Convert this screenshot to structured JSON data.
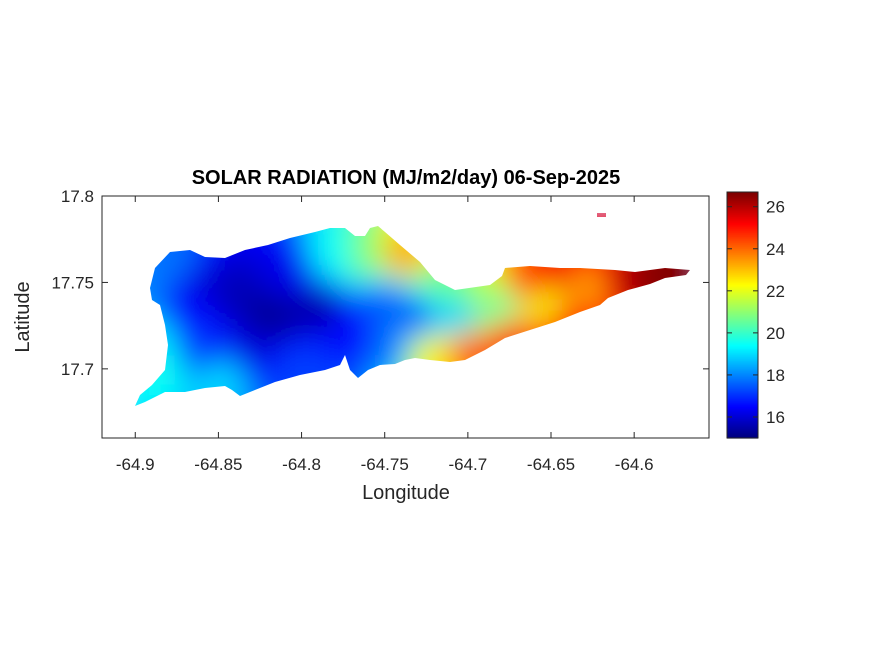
{
  "chart_data": {
    "type": "heatmap",
    "title": "SOLAR RADIATION (MJ/m2/day) 06-Sep-2025",
    "xlabel": "Longitude",
    "ylabel": "Latitude",
    "xlim": [
      -64.92,
      -64.555
    ],
    "ylim": [
      17.66,
      17.8
    ],
    "xticks": [
      -64.9,
      -64.85,
      -64.8,
      -64.75,
      -64.7,
      -64.65,
      -64.6
    ],
    "xtick_labels": [
      "-64.9",
      "-64.85",
      "-64.8",
      "-64.75",
      "-64.7",
      "-64.65",
      "-64.6"
    ],
    "yticks": [
      17.7,
      17.75,
      17.8
    ],
    "ytick_labels": [
      "17.7",
      "17.75",
      "17.8"
    ],
    "grid": false,
    "colorbar": {
      "colormap": "jet",
      "range": [
        15,
        26.7
      ],
      "ticks": [
        16,
        18,
        20,
        22,
        24,
        26
      ],
      "tick_labels": [
        "16",
        "18",
        "20",
        "22",
        "24",
        "26"
      ]
    },
    "samples": [
      {
        "lon": -64.895,
        "lat": 17.745,
        "value": 18.0
      },
      {
        "lon": -64.89,
        "lat": 17.718,
        "value": 19.2
      },
      {
        "lon": -64.885,
        "lat": 17.7,
        "value": 19.6
      },
      {
        "lon": -64.875,
        "lat": 17.762,
        "value": 17.8
      },
      {
        "lon": -64.87,
        "lat": 17.735,
        "value": 16.5
      },
      {
        "lon": -64.86,
        "lat": 17.75,
        "value": 16.0
      },
      {
        "lon": -64.86,
        "lat": 17.71,
        "value": 17.0
      },
      {
        "lon": -64.85,
        "lat": 17.694,
        "value": 19.0
      },
      {
        "lon": -64.84,
        "lat": 17.745,
        "value": 15.6
      },
      {
        "lon": -64.83,
        "lat": 17.715,
        "value": 16.0
      },
      {
        "lon": -64.82,
        "lat": 17.73,
        "value": 15.2
      },
      {
        "lon": -64.81,
        "lat": 17.755,
        "value": 16.2
      },
      {
        "lon": -64.8,
        "lat": 17.7,
        "value": 17.2
      },
      {
        "lon": -64.79,
        "lat": 17.735,
        "value": 15.5
      },
      {
        "lon": -64.78,
        "lat": 17.765,
        "value": 19.5
      },
      {
        "lon": -64.77,
        "lat": 17.72,
        "value": 16.5
      },
      {
        "lon": -64.76,
        "lat": 17.765,
        "value": 21.0
      },
      {
        "lon": -64.75,
        "lat": 17.74,
        "value": 17.5
      },
      {
        "lon": -64.745,
        "lat": 17.712,
        "value": 17.8
      },
      {
        "lon": -64.74,
        "lat": 17.765,
        "value": 23.5
      },
      {
        "lon": -64.73,
        "lat": 17.73,
        "value": 17.5
      },
      {
        "lon": -64.725,
        "lat": 17.708,
        "value": 22.5
      },
      {
        "lon": -64.715,
        "lat": 17.745,
        "value": 20.5
      },
      {
        "lon": -64.705,
        "lat": 17.73,
        "value": 18.5
      },
      {
        "lon": -64.7,
        "lat": 17.712,
        "value": 24.5
      },
      {
        "lon": -64.69,
        "lat": 17.742,
        "value": 21.5
      },
      {
        "lon": -64.68,
        "lat": 17.735,
        "value": 20.0
      },
      {
        "lon": -64.675,
        "lat": 17.72,
        "value": 25.0
      },
      {
        "lon": -64.665,
        "lat": 17.75,
        "value": 24.5
      },
      {
        "lon": -64.65,
        "lat": 17.738,
        "value": 22.0
      },
      {
        "lon": -64.645,
        "lat": 17.755,
        "value": 25.5
      },
      {
        "lon": -64.64,
        "lat": 17.73,
        "value": 25.0
      },
      {
        "lon": -64.625,
        "lat": 17.748,
        "value": 23.0
      },
      {
        "lon": -64.615,
        "lat": 17.75,
        "value": 25.5
      },
      {
        "lon": -64.6,
        "lat": 17.752,
        "value": 26.5
      },
      {
        "lon": -64.58,
        "lat": 17.754,
        "value": 26.7
      },
      {
        "lon": -64.622,
        "lat": 17.788,
        "value": 25.5
      }
    ]
  }
}
